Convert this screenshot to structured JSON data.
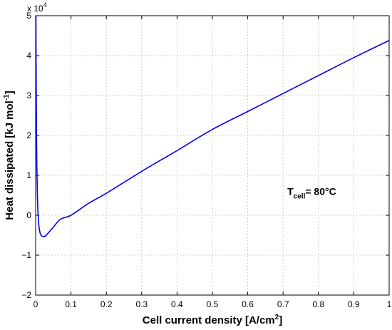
{
  "chart_data": {
    "type": "line",
    "title": "",
    "xlabel": "Cell current density [A/cm",
    "xlabel_sup": "2",
    "xlabel_end": "]",
    "ylabel": "Heat dissipated [kJ mol",
    "ylabel_sup": "-1",
    "ylabel_end": "]",
    "y_multiplier_base": "x 10",
    "y_multiplier_exp": "4",
    "xlim": [
      0,
      1
    ],
    "ylim": [
      -2,
      5
    ],
    "y_scale_factor": 10000,
    "xticks": [
      0,
      0.1,
      0.2,
      0.3,
      0.4,
      0.5,
      0.6,
      0.7,
      0.8,
      0.9,
      1
    ],
    "xtick_labels": [
      "0",
      "0.1",
      "0.2",
      "0.3",
      "0.4",
      "0.5",
      "0.6",
      "0.7",
      "0.8",
      "0.9",
      "1"
    ],
    "yticks": [
      -2,
      -1,
      0,
      1,
      2,
      3,
      4,
      5
    ],
    "ytick_labels": [
      "−2",
      "−1",
      "0",
      "1",
      "2",
      "3",
      "4",
      "5"
    ],
    "grid": true,
    "annotation": {
      "main": "T",
      "sub": "cell",
      "rest": "= 80°C",
      "x": 0.72,
      "y": 0.6
    },
    "series": [
      {
        "color": "#0000ff",
        "x": [
          0.0008,
          0.0012,
          0.0018,
          0.0025,
          0.0035,
          0.005,
          0.007,
          0.01,
          0.014,
          0.019,
          0.025,
          0.03,
          0.04,
          0.05,
          0.07,
          0.1,
          0.15,
          0.2,
          0.3,
          0.4,
          0.5,
          0.6,
          0.7,
          0.8,
          0.9,
          1.0
        ],
        "y": [
          5.0,
          4.0,
          3.0,
          2.0,
          1.2,
          0.5,
          0.0,
          -0.32,
          -0.48,
          -0.53,
          -0.53,
          -0.5,
          -0.4,
          -0.3,
          -0.1,
          0.0,
          0.3,
          0.55,
          1.1,
          1.62,
          2.15,
          2.6,
          3.05,
          3.5,
          3.95,
          4.38
        ]
      }
    ]
  }
}
